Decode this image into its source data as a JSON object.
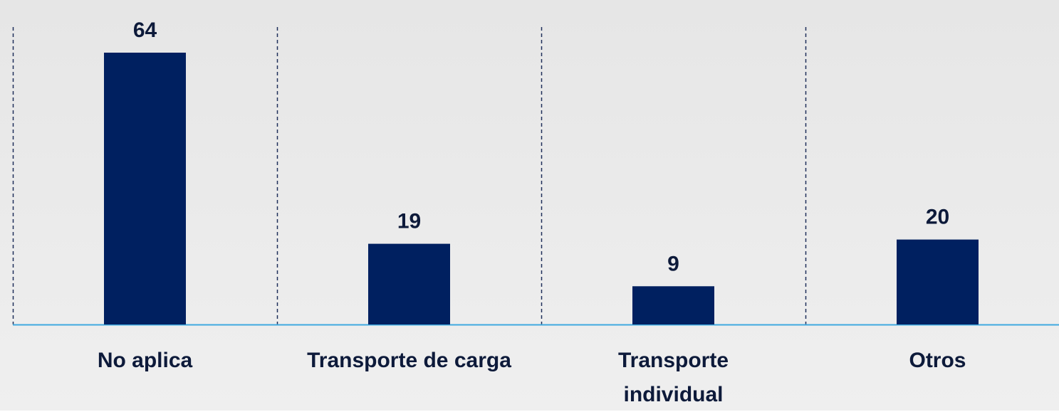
{
  "chart_data": {
    "type": "bar",
    "categories": [
      "No aplica",
      "Transporte de carga",
      "Transporte individual",
      "Otros"
    ],
    "values": [
      64,
      19,
      9,
      20
    ],
    "color": "#002060"
  }
}
